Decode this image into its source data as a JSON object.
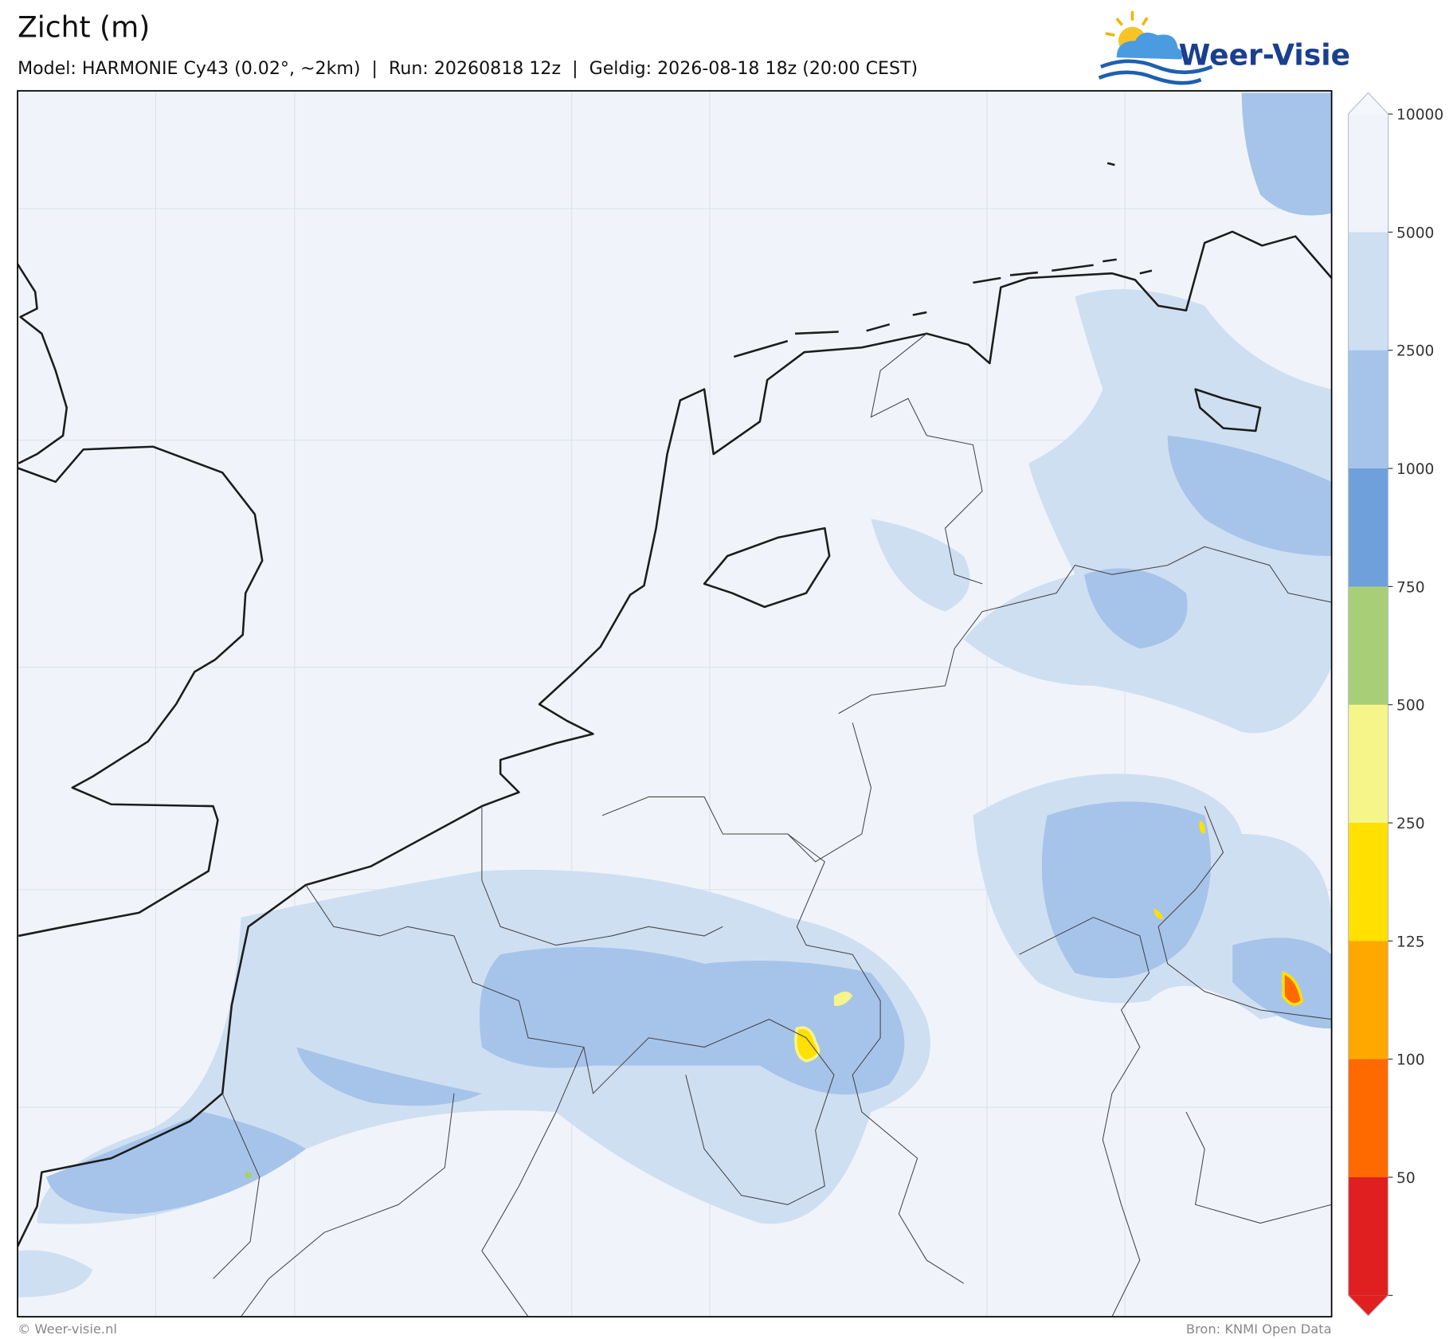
{
  "header": {
    "title": "Zicht (m)",
    "subtitle": "Model: HARMONIE Cy43 (0.02°, ~2km)  |  Run: 20260818 12z  |  Geldig: 2026-08-18 18z (20:00 CEST)"
  },
  "logo": {
    "text": "Weer-Visie"
  },
  "colorbar": {
    "ticks": [
      10000,
      5000,
      2500,
      1000,
      750,
      500,
      250,
      125,
      100,
      50
    ],
    "colors": [
      "#f4f7fb",
      "#f0f4fa",
      "#cfdff2",
      "#a6c4ea",
      "#6fa0dc",
      "#a8cf78",
      "#f5f58a",
      "#ffe000",
      "#ffa800",
      "#ff6a00",
      "#e02020"
    ]
  },
  "footer": {
    "left": "© Weer-visie.nl",
    "right": "Bron: KNMI Open Data"
  }
}
